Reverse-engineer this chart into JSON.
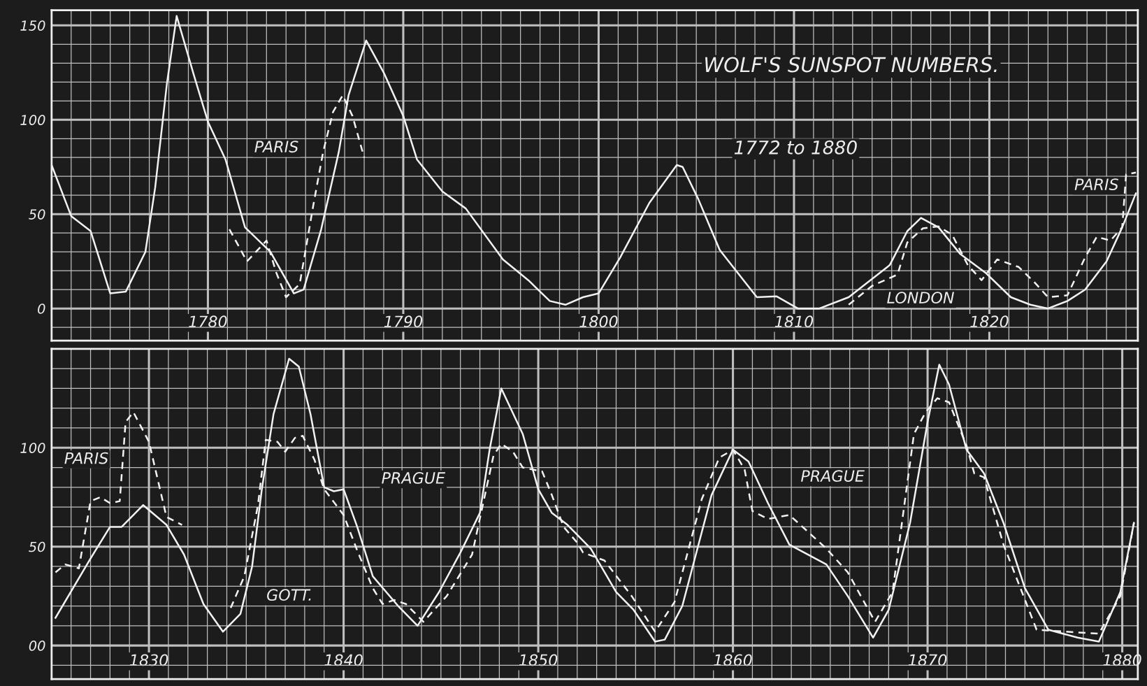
{
  "chart_data": [
    {
      "type": "line",
      "title": "WOLF'S SUNSPOT NUMBERS.",
      "subtitle": "1772 to 1880",
      "grid": true,
      "xlim": [
        1772,
        1827.6
      ],
      "ylim": [
        -17,
        158
      ],
      "xticks": [
        {
          "value": 1772,
          "label": null
        },
        {
          "value": 1773,
          "label": null
        },
        {
          "value": 1774,
          "label": null
        },
        {
          "value": 1775,
          "label": null
        },
        {
          "value": 1776,
          "label": null
        },
        {
          "value": 1777,
          "label": null
        },
        {
          "value": 1778,
          "label": null
        },
        {
          "value": 1779,
          "label": null
        },
        1780,
        {
          "value": 1781,
          "label": null
        },
        {
          "value": 1782,
          "label": null
        },
        {
          "value": 1783,
          "label": null
        },
        {
          "value": 1784,
          "label": null
        },
        {
          "value": 1785,
          "label": null
        },
        {
          "value": 1786,
          "label": null
        },
        {
          "value": 1787,
          "label": null
        },
        {
          "value": 1788,
          "label": null
        },
        {
          "value": 1789,
          "label": null
        },
        1790,
        {
          "value": 1791,
          "label": null
        },
        {
          "value": 1792,
          "label": null
        },
        {
          "value": 1793,
          "label": null
        },
        {
          "value": 1794,
          "label": null
        },
        {
          "value": 1795,
          "label": null
        },
        {
          "value": 1796,
          "label": null
        },
        {
          "value": 1797,
          "label": null
        },
        {
          "value": 1798,
          "label": null
        },
        {
          "value": 1799,
          "label": null
        },
        1800,
        {
          "value": 1801,
          "label": null
        },
        {
          "value": 1802,
          "label": null
        },
        {
          "value": 1803,
          "label": null
        },
        {
          "value": 1804,
          "label": null
        },
        {
          "value": 1805,
          "label": null
        },
        {
          "value": 1806,
          "label": null
        },
        {
          "value": 1807,
          "label": null
        },
        {
          "value": 1808,
          "label": null
        },
        {
          "value": 1809,
          "label": null
        },
        1810,
        {
          "value": 1811,
          "label": null
        },
        {
          "value": 1812,
          "label": null
        },
        {
          "value": 1813,
          "label": null
        },
        {
          "value": 1814,
          "label": null
        },
        {
          "value": 1815,
          "label": null
        },
        {
          "value": 1816,
          "label": null
        },
        {
          "value": 1817,
          "label": null
        },
        {
          "value": 1818,
          "label": null
        },
        {
          "value": 1819,
          "label": null
        },
        1820,
        {
          "value": 1821,
          "label": null
        },
        {
          "value": 1822,
          "label": null
        },
        {
          "value": 1823,
          "label": null
        },
        {
          "value": 1824,
          "label": null
        },
        {
          "value": 1825,
          "label": null
        },
        {
          "value": 1826,
          "label": null
        },
        {
          "value": 1827,
          "label": null
        }
      ],
      "yticks": [
        {
          "value": -10,
          "label": null
        },
        0,
        {
          "value": 10,
          "label": null
        },
        {
          "value": 20,
          "label": null
        },
        {
          "value": 30,
          "label": null
        },
        {
          "value": 40,
          "label": null
        },
        50,
        {
          "value": 60,
          "label": null
        },
        {
          "value": 70,
          "label": null
        },
        {
          "value": 80,
          "label": null
        },
        {
          "value": 90,
          "label": null
        },
        100,
        {
          "value": 110,
          "label": null
        },
        {
          "value": 120,
          "label": null
        },
        {
          "value": 130,
          "label": null
        },
        {
          "value": 140,
          "label": null
        },
        150
      ],
      "annotations": [
        "PARIS",
        "LONDON",
        "PARIS"
      ],
      "series": [
        {
          "color": "#f2f2f2",
          "line_style": "solid",
          "x": [
            1772,
            1773,
            1774,
            1775,
            1775.8,
            1776.8,
            1777.3,
            1777.9,
            1778.4,
            1779.3,
            1780,
            1780.9,
            1781.9,
            1783.2,
            1784.4,
            1784.9,
            1785.8,
            1786.7,
            1787.2,
            1788.1,
            1789,
            1790,
            1790.7,
            1792,
            1793.2,
            1795.1,
            1796.4,
            1797.5,
            1798.3,
            1799.2,
            1800,
            1801.1,
            1802.6,
            1804,
            1804.3,
            1805.1,
            1806.2,
            1808.1,
            1809.1,
            1810.2,
            1811.3,
            1812.8,
            1814.9,
            1815.8,
            1816.5,
            1817.4,
            1818.5,
            1819.8,
            1821.1,
            1822.1,
            1823,
            1824,
            1824.9,
            1826,
            1826.8,
            1827.5
          ],
          "values": [
            76,
            49,
            41,
            8,
            9,
            30,
            64,
            119,
            155,
            123,
            99,
            79,
            43,
            30,
            8,
            10,
            42,
            83,
            113,
            142,
            125,
            102,
            79,
            62,
            53,
            26,
            15,
            4,
            2,
            6,
            8,
            27,
            56,
            76,
            75,
            58,
            31,
            6,
            6.5,
            0,
            0,
            6,
            23,
            41,
            48,
            43,
            29,
            19,
            6,
            2,
            0,
            4,
            10,
            25,
            43,
            61
          ]
        },
        {
          "color": "#f2f2f2",
          "line_style": "dashed",
          "x": [
            1781.1,
            1782,
            1783,
            1783.5,
            1784,
            1784.7,
            1785.4,
            1785.9,
            1786.4,
            1786.9,
            1787.4,
            1788,
            null,
            1812.8,
            1814,
            1815.3,
            1815.8,
            1816.6,
            1817.4,
            1818.1,
            1818.9,
            1819.6,
            1820.4,
            1821.5,
            1822.3,
            1823,
            1824,
            1824.9,
            1825.5,
            1826.2,
            1826.8,
            1827,
            1827.5
          ],
          "values": [
            42,
            25,
            36,
            19,
            6,
            13,
            55,
            83,
            104,
            113,
            102,
            80,
            null,
            2,
            12,
            18,
            35,
            42.5,
            43.5,
            39,
            23,
            15,
            26,
            22,
            14,
            6,
            7,
            27,
            38,
            36,
            43,
            71,
            72
          ]
        }
      ]
    },
    {
      "type": "line",
      "grid": true,
      "xlim": [
        1825,
        1880.8
      ],
      "ylim": [
        -17,
        150
      ],
      "xticks": [
        {
          "value": 1825,
          "label": null
        },
        {
          "value": 1826,
          "label": null
        },
        {
          "value": 1827,
          "label": null
        },
        {
          "value": 1828,
          "label": null
        },
        {
          "value": 1829,
          "label": null
        },
        1830,
        {
          "value": 1831,
          "label": null
        },
        {
          "value": 1832,
          "label": null
        },
        {
          "value": 1833,
          "label": null
        },
        {
          "value": 1834,
          "label": null
        },
        {
          "value": 1835,
          "label": null
        },
        {
          "value": 1836,
          "label": null
        },
        {
          "value": 1837,
          "label": null
        },
        {
          "value": 1838,
          "label": null
        },
        {
          "value": 1839,
          "label": null
        },
        1840,
        {
          "value": 1841,
          "label": null
        },
        {
          "value": 1842,
          "label": null
        },
        {
          "value": 1843,
          "label": null
        },
        {
          "value": 1844,
          "label": null
        },
        {
          "value": 1845,
          "label": null
        },
        {
          "value": 1846,
          "label": null
        },
        {
          "value": 1847,
          "label": null
        },
        {
          "value": 1848,
          "label": null
        },
        {
          "value": 1849,
          "label": null
        },
        1850,
        {
          "value": 1851,
          "label": null
        },
        {
          "value": 1852,
          "label": null
        },
        {
          "value": 1853,
          "label": null
        },
        {
          "value": 1854,
          "label": null
        },
        {
          "value": 1855,
          "label": null
        },
        {
          "value": 1856,
          "label": null
        },
        {
          "value": 1857,
          "label": null
        },
        {
          "value": 1858,
          "label": null
        },
        {
          "value": 1859,
          "label": null
        },
        1860,
        {
          "value": 1861,
          "label": null
        },
        {
          "value": 1862,
          "label": null
        },
        {
          "value": 1863,
          "label": null
        },
        {
          "value": 1864,
          "label": null
        },
        {
          "value": 1865,
          "label": null
        },
        {
          "value": 1866,
          "label": null
        },
        {
          "value": 1867,
          "label": null
        },
        {
          "value": 1868,
          "label": null
        },
        {
          "value": 1869,
          "label": null
        },
        1870,
        {
          "value": 1871,
          "label": null
        },
        {
          "value": 1872,
          "label": null
        },
        {
          "value": 1873,
          "label": null
        },
        {
          "value": 1874,
          "label": null
        },
        {
          "value": 1875,
          "label": null
        },
        {
          "value": 1876,
          "label": null
        },
        {
          "value": 1877,
          "label": null
        },
        {
          "value": 1878,
          "label": null
        },
        {
          "value": 1879,
          "label": null
        },
        1880
      ],
      "yticks": [
        {
          "value": -10,
          "label": null
        },
        {
          "value": 0,
          "label": "00"
        },
        {
          "value": 10,
          "label": null
        },
        {
          "value": 20,
          "label": null
        },
        {
          "value": 30,
          "label": null
        },
        {
          "value": 40,
          "label": null
        },
        50,
        {
          "value": 60,
          "label": null
        },
        {
          "value": 70,
          "label": null
        },
        {
          "value": 80,
          "label": null
        },
        {
          "value": 90,
          "label": null
        },
        100,
        {
          "value": 110,
          "label": null
        },
        {
          "value": 120,
          "label": null
        },
        {
          "value": 130,
          "label": null
        },
        {
          "value": 140,
          "label": null
        }
      ],
      "annotations": [
        "PARIS",
        "GOTT.",
        "PRAGUE",
        "PRAGUE"
      ],
      "series": [
        {
          "color": "#f2f2f2",
          "line_style": "solid",
          "x": [
            1825.2,
            1827,
            1828,
            1828.6,
            1829.7,
            1830.9,
            1831.8,
            1832.8,
            1833.8,
            1834.7,
            1835.3,
            1835.8,
            1836.4,
            1837.2,
            1837.7,
            1838.3,
            1839,
            1839.5,
            1840,
            1840.7,
            1841.5,
            1842.8,
            1843.8,
            1844.9,
            1846,
            1847,
            1847.5,
            1848.1,
            1849.2,
            1850,
            1850.7,
            1851.5,
            1852.7,
            1854,
            1854.9,
            1856,
            1856.5,
            1857.4,
            1858.9,
            1860,
            1860.8,
            1861.8,
            1862.9,
            1864.8,
            1865.9,
            1867.2,
            1868,
            1869.1,
            1870,
            1870.6,
            1871.1,
            1872,
            1872.9,
            1873.9,
            1875,
            1876.2,
            1877.7,
            1878.8,
            1879.9,
            1880.6
          ],
          "values": [
            14,
            44,
            60,
            60,
            71,
            61,
            46,
            21,
            7,
            16,
            40,
            79,
            117,
            145,
            141,
            117,
            80,
            78,
            79,
            60,
            35,
            20,
            10,
            27,
            47,
            67,
            99,
            130,
            107,
            79,
            67,
            61,
            49,
            27,
            18,
            2,
            3,
            20,
            76,
            99,
            93,
            72,
            51,
            41,
            25,
            4,
            18,
            62,
            113,
            142,
            132,
            99,
            87,
            62,
            29,
            8,
            4,
            2,
            27,
            62
          ]
        },
        {
          "color": "#f2f2f2",
          "line_style": "dashed",
          "x": [
            1825.2,
            1825.7,
            1826.4,
            1827,
            1827.5,
            1828,
            1828.5,
            1828.8,
            1829.2,
            1830,
            1830.9,
            1831.7,
            null,
            1834.2,
            1834.9,
            1835.6,
            1836,
            1836.6,
            1837,
            1837.5,
            1837.9,
            1838.5,
            1839,
            1840,
            1840.7,
            1841.5,
            1842,
            1842.6,
            1843.2,
            1844.1,
            1845.3,
            1846.6,
            1847.7,
            1848.1,
            1848.7,
            1849.2,
            1850.2,
            1850.7,
            1851.3,
            1852,
            1852.3,
            1853.4,
            1854.8,
            1856,
            1857,
            1858.4,
            1859.3,
            1860,
            1860.6,
            1861,
            1861.8,
            1862.9,
            1863.8,
            1864.8,
            1865.9,
            1867.3,
            1868.2,
            1869.3,
            1869.9,
            1870.5,
            1871.1,
            1872,
            1872.4,
            1872.9,
            1873.9,
            1875.6,
            1877.1,
            1878.8,
            1879.9,
            1880.6
          ],
          "values": [
            37,
            41,
            39,
            73,
            75,
            72,
            73,
            113,
            118,
            103,
            65,
            61,
            null,
            19,
            35,
            71,
            104,
            103,
            98,
            105,
            106,
            94,
            79,
            66,
            48,
            29,
            21,
            23,
            21,
            12,
            25,
            46,
            96,
            102,
            98,
            90,
            88,
            76,
            60,
            52,
            47,
            43,
            25,
            7,
            22,
            74,
            95,
            99,
            89,
            68,
            64,
            66,
            58,
            49,
            37,
            12,
            27,
            107,
            118,
            125,
            123,
            101,
            87,
            85,
            51,
            8,
            7,
            6,
            25,
            62
          ]
        }
      ]
    }
  ]
}
